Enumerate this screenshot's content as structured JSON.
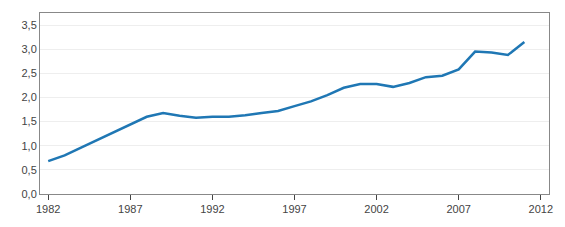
{
  "chart_data": {
    "type": "line",
    "x": [
      1982,
      1983,
      1984,
      1985,
      1986,
      1987,
      1988,
      1989,
      1990,
      1991,
      1992,
      1993,
      1994,
      1995,
      1996,
      1997,
      1998,
      1999,
      2000,
      2001,
      2002,
      2003,
      2004,
      2005,
      2006,
      2007,
      2008,
      2009,
      2010,
      2011
    ],
    "values": [
      0.68,
      0.8,
      0.96,
      1.12,
      1.28,
      1.45,
      1.6,
      1.68,
      1.62,
      1.58,
      1.6,
      1.6,
      1.63,
      1.68,
      1.72,
      1.82,
      1.92,
      2.05,
      2.2,
      2.28,
      2.28,
      2.22,
      2.3,
      2.42,
      2.45,
      2.58,
      2.95,
      2.93,
      2.88,
      3.15
    ],
    "xlim": [
      1981.5,
      2012.5
    ],
    "xticks": [
      1982,
      1987,
      1992,
      1997,
      2002,
      2007,
      2012
    ],
    "ylim": [
      0.0,
      3.75
    ],
    "yticks": [
      {
        "value": 0.0,
        "label": "0,0"
      },
      {
        "value": 0.5,
        "label": "0,5"
      },
      {
        "value": 1.0,
        "label": "1,0"
      },
      {
        "value": 1.5,
        "label": "1,5"
      },
      {
        "value": 2.0,
        "label": "2,0"
      },
      {
        "value": 2.5,
        "label": "2,5"
      },
      {
        "value": 3.0,
        "label": "3,0"
      },
      {
        "value": 3.5,
        "label": "3,5"
      }
    ],
    "grid": "y"
  }
}
